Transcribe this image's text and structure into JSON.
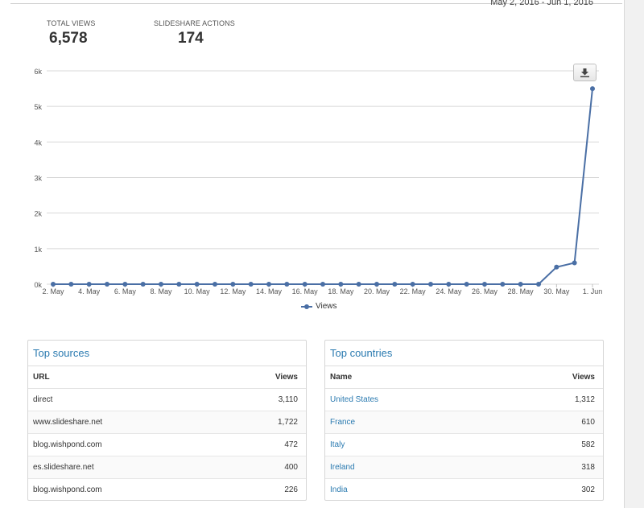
{
  "header": {
    "date_range": "May 2, 2016 - Jun 1, 2016"
  },
  "stats": {
    "total_views_label": "TOTAL VIEWS",
    "total_views_value": "6,578",
    "actions_label": "SLIDESHARE ACTIONS",
    "actions_value": "174"
  },
  "chart_data": {
    "type": "line",
    "title": "",
    "xlabel": "",
    "ylabel": "",
    "ylim": [
      0,
      6000
    ],
    "yticks": [
      "0k",
      "1k",
      "2k",
      "3k",
      "4k",
      "5k",
      "6k"
    ],
    "x_tick_labels": [
      "2. May",
      "4. May",
      "6. May",
      "8. May",
      "10. May",
      "12. May",
      "14. May",
      "16. May",
      "18. May",
      "20. May",
      "22. May",
      "24. May",
      "26. May",
      "28. May",
      "30. May",
      "1. Jun"
    ],
    "grid": true,
    "legend": "bottom-center",
    "color": "#4a6fa5",
    "series": [
      {
        "name": "Views",
        "x": [
          "2. May",
          "3. May",
          "4. May",
          "5. May",
          "6. May",
          "7. May",
          "8. May",
          "9. May",
          "10. May",
          "11. May",
          "12. May",
          "13. May",
          "14. May",
          "15. May",
          "16. May",
          "17. May",
          "18. May",
          "19. May",
          "20. May",
          "21. May",
          "22. May",
          "23. May",
          "24. May",
          "25. May",
          "26. May",
          "27. May",
          "28. May",
          "29. May",
          "30. May",
          "31. May",
          "1. Jun"
        ],
        "values": [
          0,
          0,
          0,
          0,
          0,
          0,
          0,
          0,
          0,
          0,
          0,
          0,
          0,
          0,
          0,
          0,
          0,
          0,
          0,
          0,
          0,
          0,
          0,
          0,
          0,
          0,
          0,
          0,
          480,
          600,
          5500
        ]
      }
    ]
  },
  "legend_label": "Views",
  "download_icon": "download-icon",
  "sources": {
    "title": "Top sources",
    "col_url": "URL",
    "col_views": "Views",
    "rows": [
      {
        "name": "direct",
        "views": "3,110"
      },
      {
        "name": "www.slideshare.net",
        "views": "1,722"
      },
      {
        "name": "blog.wishpond.com",
        "views": "472"
      },
      {
        "name": "es.slideshare.net",
        "views": "400"
      },
      {
        "name": "blog.wishpond.com",
        "views": "226"
      }
    ]
  },
  "countries": {
    "title": "Top countries",
    "col_name": "Name",
    "col_views": "Views",
    "rows": [
      {
        "name": "United States",
        "views": "1,312"
      },
      {
        "name": "France",
        "views": "610"
      },
      {
        "name": "Italy",
        "views": "582"
      },
      {
        "name": "Ireland",
        "views": "318"
      },
      {
        "name": "India",
        "views": "302"
      }
    ]
  }
}
